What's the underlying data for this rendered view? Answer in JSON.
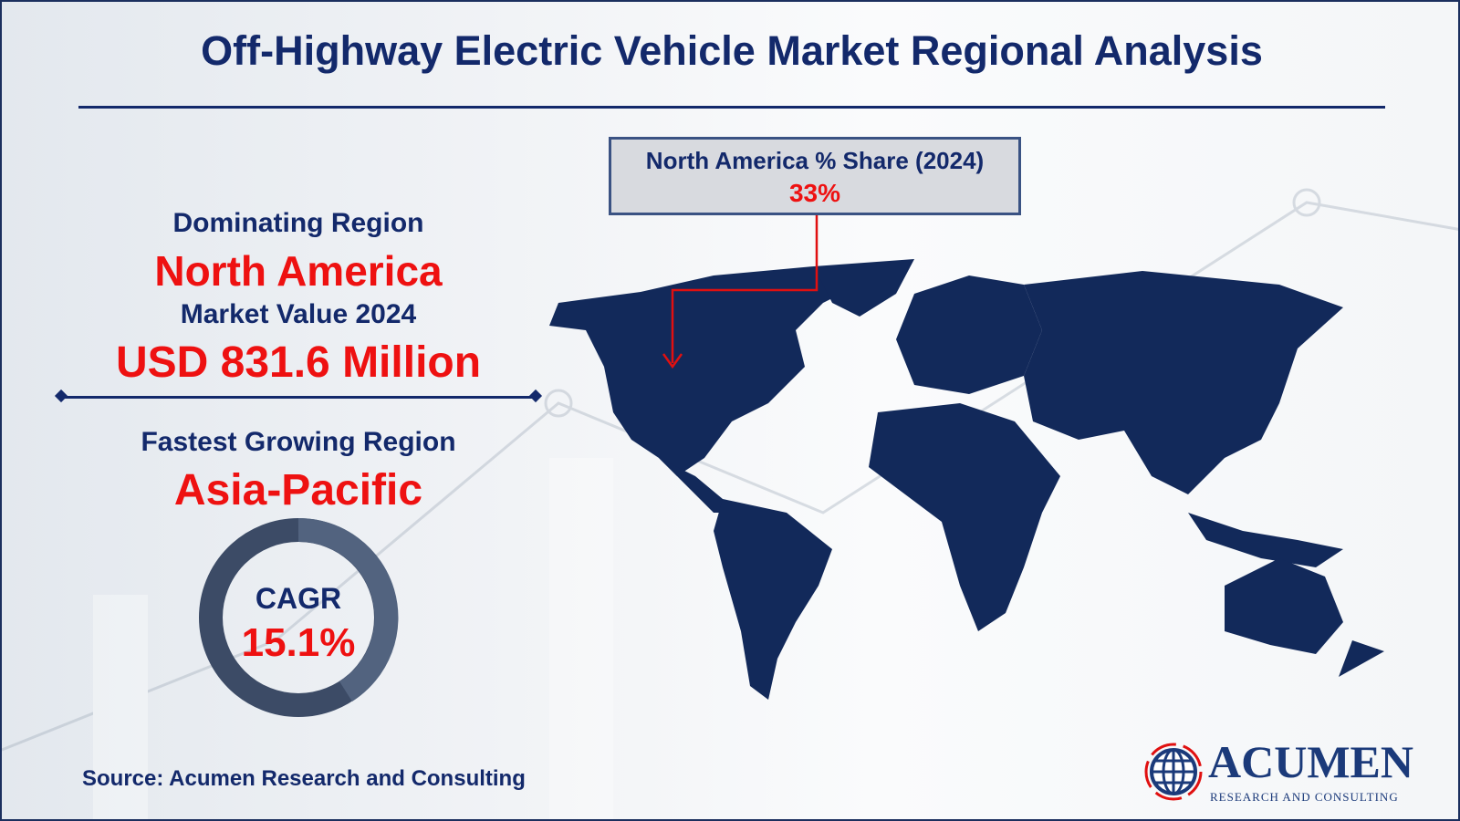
{
  "title": "Off-Highway Electric Vehicle Market Regional Analysis",
  "dominating": {
    "label": "Dominating Region",
    "value": "North America"
  },
  "market_value": {
    "label": "Market Value 2024",
    "value": "USD 831.6 Million"
  },
  "fastest": {
    "label": "Fastest Growing Region",
    "value": "Asia-Pacific"
  },
  "cagr": {
    "label": "CAGR",
    "value": "15.1%"
  },
  "callout": {
    "label": "North America % Share (2024)",
    "value": "33%"
  },
  "source": "Source: Acumen Research and Consulting",
  "logo": {
    "name": "ACUMEN",
    "tagline": "RESEARCH AND CONSULTING"
  },
  "colors": {
    "navy": "#13296b",
    "red": "#ee1111",
    "map": "#12295a",
    "donut_dark": "#3c4b66",
    "donut_light": "#52637f"
  }
}
